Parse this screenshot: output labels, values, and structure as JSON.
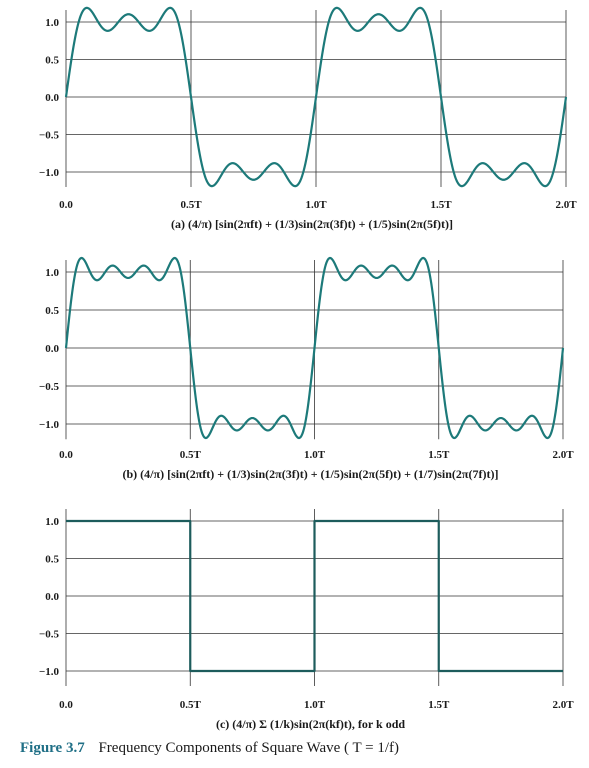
{
  "chart_data": [
    {
      "type": "line",
      "caption": "(a) (4/π) [sin(2πft) + (1/3)sin(2π(3f)t) + (1/5)sin(2π(5f)t)]",
      "harmonics": [
        1,
        3,
        5
      ],
      "xticks": [
        "0.0",
        "0.5T",
        "1.0T",
        "1.5T",
        "2.0T"
      ],
      "yticks": [
        "1.0",
        "0.5",
        "0.0",
        "−0.5",
        "−1.0"
      ],
      "xlim": [
        0,
        2
      ],
      "ylim": [
        -1.2,
        1.2
      ],
      "grid": true,
      "color": "#1d7a7a"
    },
    {
      "type": "line",
      "caption": "(b) (4/π) [sin(2πft) + (1/3)sin(2π(3f)t) + (1/5)sin(2π(5f)t) + (1/7)sin(2π(7f)t)]",
      "harmonics": [
        1,
        3,
        5,
        7
      ],
      "xticks": [
        "0.0",
        "0.5T",
        "1.0T",
        "1.5T",
        "2.0T"
      ],
      "yticks": [
        "1.0",
        "0.5",
        "0.0",
        "−0.5",
        "−1.0"
      ],
      "xlim": [
        0,
        2
      ],
      "ylim": [
        -1.2,
        1.2
      ],
      "grid": true,
      "color": "#1d7a7a"
    },
    {
      "type": "line",
      "caption": "(c) (4/π) Σ (1/k)sin(2π(kf)t), for k odd",
      "harmonics": "square",
      "xticks": [
        "0.0",
        "0.5T",
        "1.0T",
        "1.5T",
        "2.0T"
      ],
      "yticks": [
        "1.0",
        "0.5",
        "0.0",
        "−0.5",
        "−1.0"
      ],
      "xlim": [
        0,
        2
      ],
      "ylim": [
        -1.2,
        1.2
      ],
      "grid": true,
      "color": "#1d5c5c"
    }
  ],
  "figure_caption": {
    "number": "Figure 3.7",
    "title": "Frequency Components of Square Wave ( T = 1/f)"
  }
}
